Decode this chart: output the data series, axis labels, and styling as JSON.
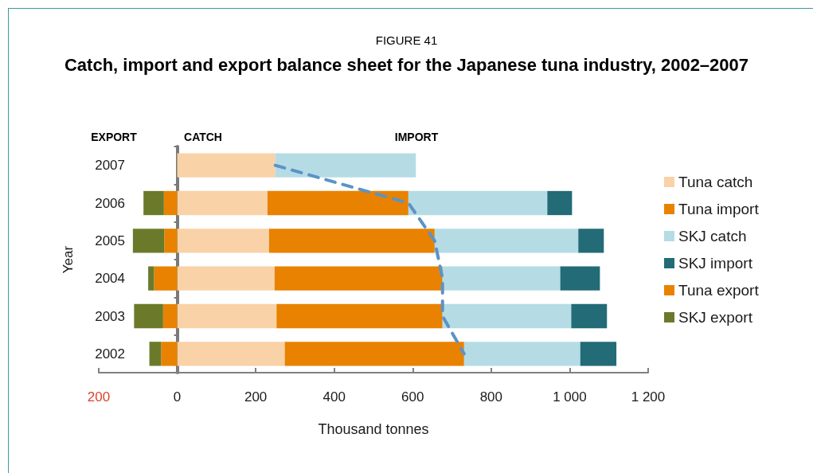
{
  "chart_data": {
    "type": "bar",
    "orientation": "horizontal",
    "stacked": true,
    "title": "FIGURE 41",
    "subtitle": "Catch, import and export balance sheet for the Japanese tuna industry, 2002–2007",
    "xlabel": "Thousand tonnes",
    "ylabel": "Year",
    "categories": [
      "2007",
      "2006",
      "2005",
      "2004",
      "2003",
      "2002"
    ],
    "series": [
      {
        "name": "Tuna catch",
        "color": "#f9d2a8",
        "values": [
          250,
          230,
          234,
          248,
          253,
          274
        ]
      },
      {
        "name": "Tuna import",
        "color": "#e88200",
        "values": [
          null,
          359,
          422,
          428,
          423,
          457
        ]
      },
      {
        "name": "SKJ catch",
        "color": "#b5dce5",
        "values": [
          358,
          354,
          366,
          300,
          328,
          296
        ]
      },
      {
        "name": "SKJ import",
        "color": "#226b77",
        "values": [
          null,
          63,
          65,
          101,
          91,
          92
        ]
      },
      {
        "name": "Tuna export",
        "color": "#e88200",
        "values": [
          null,
          -34,
          -33,
          -59,
          -36,
          -41
        ]
      },
      {
        "name": "SKJ export",
        "color": "#6b7a2a",
        "values": [
          null,
          -52,
          -80,
          -15,
          -74,
          -30
        ]
      },
      {
        "type": "line",
        "color": "#5b93c7",
        "line_style": "dashed",
        "marker": "none",
        "values": [
          250,
          589,
          656,
          676,
          676,
          731
        ]
      }
    ],
    "xlim": [
      -200,
      1200
    ],
    "xticks": [
      {
        "value": -200,
        "label": "200"
      },
      0,
      200,
      400,
      600,
      800,
      {
        "value": 1000,
        "label": "1 000"
      },
      {
        "value": 1200,
        "label": "1 200"
      }
    ],
    "annotations": [
      "EXPORT",
      "CATCH",
      "IMPORT"
    ],
    "legend": "right"
  }
}
